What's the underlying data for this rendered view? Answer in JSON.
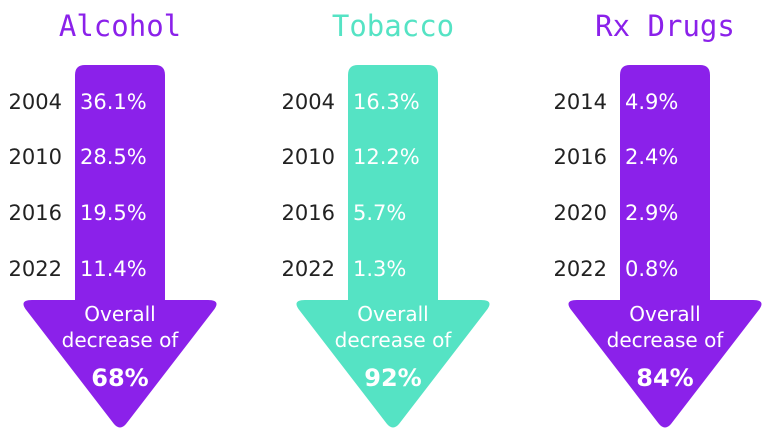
{
  "panels": [
    {
      "title": "Alcohol",
      "color": "#8b21ea",
      "rows": [
        [
          "2004",
          "36.1%"
        ],
        [
          "2010",
          "28.5%"
        ],
        [
          "2016",
          "19.5%"
        ],
        [
          "2022",
          "11.4%"
        ]
      ],
      "caption": "Overall decrease of",
      "decrease": "68%"
    },
    {
      "title": "Tobacco",
      "color": "#55e3c4",
      "rows": [
        [
          "2004",
          "16.3%"
        ],
        [
          "2010",
          "12.2%"
        ],
        [
          "2016",
          "5.7%"
        ],
        [
          "2022",
          "1.3%"
        ]
      ],
      "caption": "Overall decrease of",
      "decrease": "92%"
    },
    {
      "title": "Rx Drugs",
      "color": "#8b21ea",
      "rows": [
        [
          "2014",
          "4.9%"
        ],
        [
          "2016",
          "2.4%"
        ],
        [
          "2020",
          "2.9%"
        ],
        [
          "2022",
          "0.8%"
        ]
      ],
      "caption": "Overall decrease of",
      "decrease": "84%"
    }
  ]
}
